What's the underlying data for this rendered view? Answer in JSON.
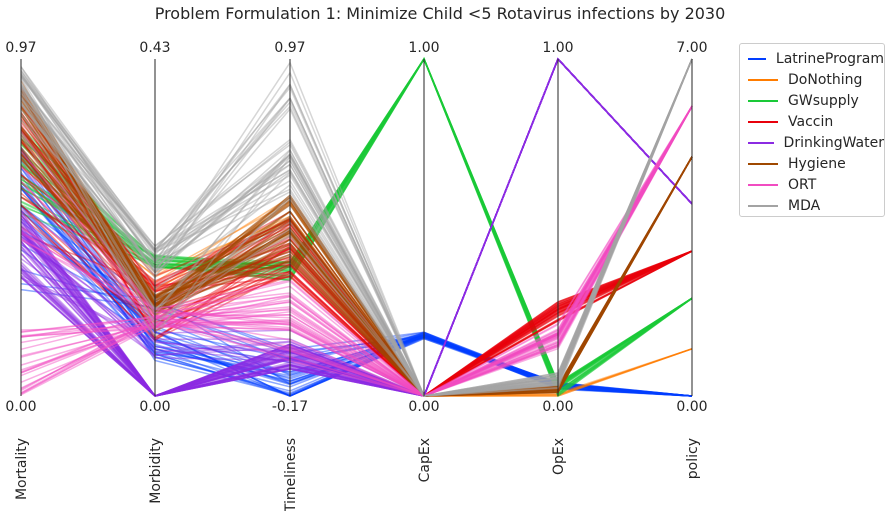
{
  "chart_data": {
    "type": "parallel_coordinates",
    "title": "Problem Formulation 1: Minimize Child <5 Rotavirus infections by 2030",
    "axes": [
      {
        "label": "Mortality",
        "top": "0.97",
        "bottom": "0.00"
      },
      {
        "label": "Morbidity",
        "top": "0.43",
        "bottom": "0.00"
      },
      {
        "label": "Timeliness",
        "top": "0.97",
        "bottom": "-0.17"
      },
      {
        "label": "CapEx",
        "top": "1.00",
        "bottom": "0.00"
      },
      {
        "label": "OpEx",
        "top": "1.00",
        "bottom": "0.00"
      },
      {
        "label": "policy",
        "top": "7.00",
        "bottom": "0.00"
      }
    ],
    "legend_position": "outside-right",
    "series": [
      {
        "name": "LatrineProgram",
        "color": "#023eff",
        "bundles": [
          {
            "values": [
              0.65,
              0.15,
              0.02,
              0.18,
              0.03,
              0.0
            ],
            "count": 22,
            "spread": [
              0.1,
              0.05,
              0.06,
              0.01,
              0.01,
              0.0
            ]
          },
          {
            "values": [
              0.45,
              0.22,
              0.08,
              0.18,
              0.03,
              0.0
            ],
            "count": 10,
            "spread": [
              0.15,
              0.08,
              0.06,
              0.01,
              0.01,
              0.0
            ]
          }
        ]
      },
      {
        "name": "DoNothing",
        "color": "#ff7c00",
        "bundles": [
          {
            "values": [
              0.74,
              0.34,
              0.55,
              0.0,
              0.0,
              0.14
            ],
            "count": 6,
            "spread": [
              0.1,
              0.03,
              0.04,
              0.0,
              0.01,
              0.0
            ]
          }
        ]
      },
      {
        "name": "GWsupply",
        "color": "#1ac938",
        "bundles": [
          {
            "values": [
              0.66,
              0.4,
              0.37,
              1.0,
              0.02,
              0.29
            ],
            "count": 30,
            "spread": [
              0.14,
              0.02,
              0.03,
              0.0,
              0.02,
              0.0
            ]
          }
        ]
      },
      {
        "name": "Vaccin",
        "color": "#e8000b",
        "bundles": [
          {
            "values": [
              0.7,
              0.26,
              0.45,
              0.0,
              0.25,
              0.43
            ],
            "count": 40,
            "spread": [
              0.22,
              0.1,
              0.1,
              0.0,
              0.03,
              0.0
            ]
          }
        ]
      },
      {
        "name": "DrinkingWater",
        "color": "#8b2be2",
        "bundles": [
          {
            "values": [
              0.45,
              0.0,
              0.12,
              0.0,
              1.0,
              0.57
            ],
            "count": 45,
            "spread": [
              0.1,
              0.0,
              0.04,
              0.0,
              0.0,
              0.0
            ]
          },
          {
            "values": [
              0.4,
              0.15,
              0.15,
              0.0,
              1.0,
              0.57
            ],
            "count": 10,
            "spread": [
              0.1,
              0.04,
              0.06,
              0.0,
              0.0,
              0.0
            ]
          }
        ]
      },
      {
        "name": "Hygiene",
        "color": "#9f4800",
        "bundles": [
          {
            "values": [
              0.82,
              0.27,
              0.5,
              0.0,
              0.02,
              0.71
            ],
            "count": 45,
            "spread": [
              0.12,
              0.03,
              0.1,
              0.0,
              0.01,
              0.0
            ]
          }
        ]
      },
      {
        "name": "ORT",
        "color": "#f14cc1",
        "bundles": [
          {
            "values": [
              0.1,
              0.22,
              0.2,
              0.0,
              0.17,
              0.86
            ],
            "count": 25,
            "spread": [
              0.1,
              0.02,
              0.1,
              0.0,
              0.03,
              0.0
            ]
          },
          {
            "values": [
              0.6,
              0.25,
              0.3,
              0.0,
              0.2,
              0.86
            ],
            "count": 10,
            "spread": [
              0.2,
              0.02,
              0.1,
              0.0,
              0.03,
              0.0
            ]
          }
        ]
      },
      {
        "name": "MDA",
        "color": "#a3a3a3",
        "bundles": [
          {
            "values": [
              0.9,
              0.4,
              0.8,
              0.0,
              0.05,
              1.0
            ],
            "count": 30,
            "spread": [
              0.08,
              0.05,
              0.2,
              0.0,
              0.02,
              0.0
            ]
          },
          {
            "values": [
              0.85,
              0.25,
              0.6,
              0.0,
              0.04,
              1.0
            ],
            "count": 10,
            "spread": [
              0.1,
              0.08,
              0.15,
              0.0,
              0.02,
              0.0
            ]
          }
        ]
      }
    ]
  }
}
